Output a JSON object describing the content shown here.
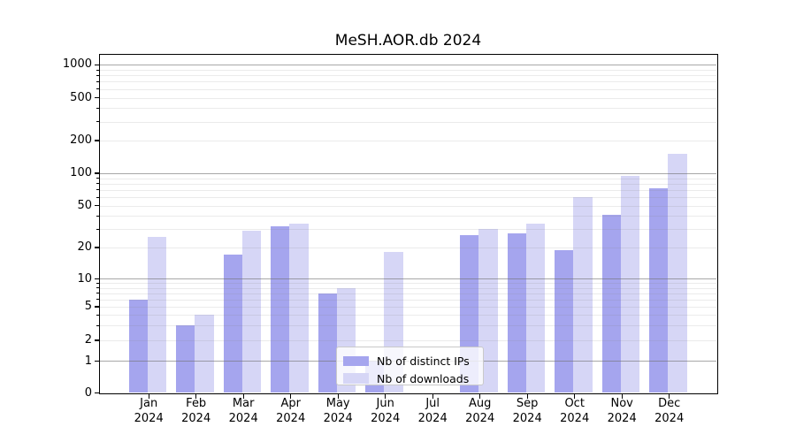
{
  "title": "MeSH.AOR.db 2024",
  "legend": {
    "items": [
      {
        "label": "Nb of distinct IPs",
        "color": "#a5a5ee"
      },
      {
        "label": "Nb of downloads",
        "color": "#d6d6f6"
      }
    ]
  },
  "y_axis": {
    "tick_values": [
      0,
      1,
      2,
      5,
      10,
      20,
      50,
      100,
      200,
      500,
      1000
    ],
    "tick_labels": [
      "0",
      "1",
      "2",
      "5",
      "10",
      "20",
      "50",
      "100",
      "200",
      "500",
      "1000"
    ]
  },
  "x_axis": {
    "year": "2024",
    "months": [
      "Jan",
      "Feb",
      "Mar",
      "Apr",
      "May",
      "Jun",
      "Jul",
      "Aug",
      "Sep",
      "Oct",
      "Nov",
      "Dec"
    ]
  },
  "chart_data": {
    "type": "bar",
    "title": "MeSH.AOR.db 2024",
    "categories": [
      "Jan 2024",
      "Feb 2024",
      "Mar 2024",
      "Apr 2024",
      "May 2024",
      "Jun 2024",
      "Jul 2024",
      "Aug 2024",
      "Sep 2024",
      "Oct 2024",
      "Nov 2024",
      "Dec 2024"
    ],
    "series": [
      {
        "name": "Nb of distinct IPs",
        "color": "#a5a5ee",
        "values": [
          6,
          3,
          17,
          32,
          7,
          1,
          0,
          26,
          27,
          19,
          41,
          72
        ]
      },
      {
        "name": "Nb of downloads",
        "color": "#d6d6f6",
        "values": [
          25,
          4,
          29,
          34,
          8,
          18,
          0,
          30,
          34,
          60,
          95,
          150
        ]
      }
    ],
    "yscale": "symlog-like (log decades 1-1000, linear 0-1)",
    "yticks": [
      0,
      1,
      2,
      5,
      10,
      20,
      50,
      100,
      200,
      500,
      1000
    ],
    "ylim": [
      0,
      1300
    ],
    "xlabel": "",
    "ylabel": "",
    "grid": "horizontal major (powers of 10) + faint minor gridlines, drawn above bars",
    "legend_position": "lower center"
  }
}
